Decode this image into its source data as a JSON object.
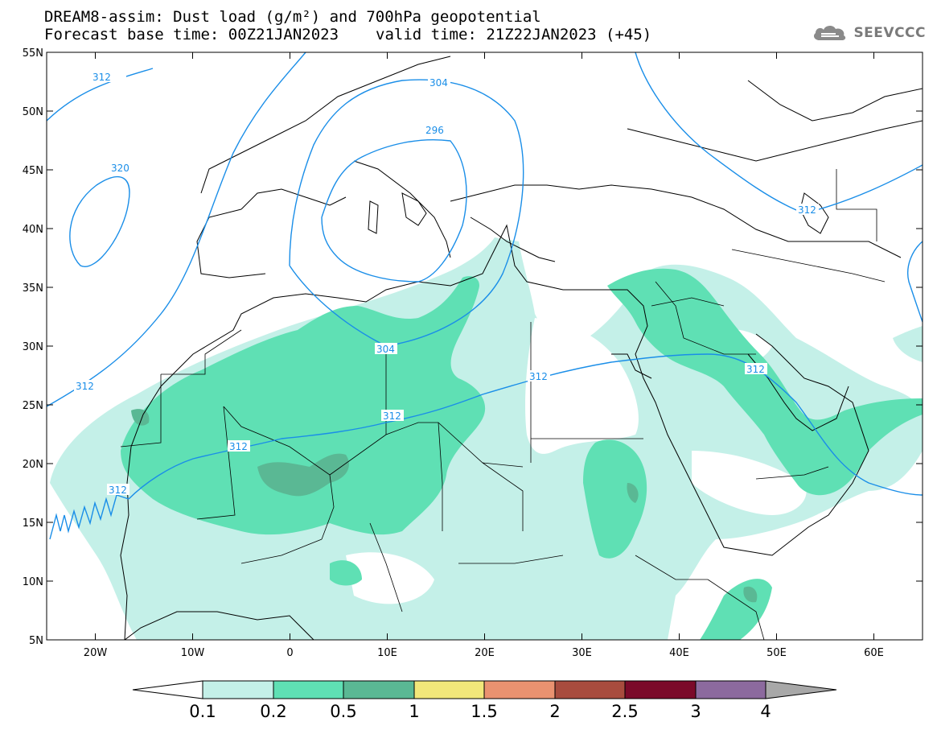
{
  "header": {
    "title": "DREAM8-assim: Dust load (g/m²) and 700hPa geopotential",
    "base_time": "Forecast base time: 00Z21JAN2023",
    "valid_time": "valid time: 21Z22JAN2023 (+45)"
  },
  "logo": {
    "name": "SEEVCCC",
    "icon": "cloud-logo-icon"
  },
  "map": {
    "lon_range": [
      -25,
      65
    ],
    "lat_range": [
      5,
      55
    ],
    "lat_labels": [
      "55N",
      "50N",
      "45N",
      "40N",
      "35N",
      "30N",
      "25N",
      "20N",
      "15N",
      "10N",
      "5N"
    ],
    "lon_labels": [
      "20W",
      "10W",
      "0",
      "10E",
      "20E",
      "30E",
      "40E",
      "50E",
      "60E"
    ],
    "contour_labels": [
      "312",
      "304",
      "296",
      "320",
      "312",
      "304",
      "312",
      "312",
      "312",
      "312",
      "312",
      "312"
    ],
    "colors": {
      "dust_0_1": "#c4f0e8",
      "dust_0_2": "#5fe0b4",
      "dust_0_5": "#5ab894",
      "contour": "#1a8ee8"
    }
  },
  "colorbar": {
    "labels": [
      "0.1",
      "0.2",
      "0.5",
      "1",
      "1.5",
      "2",
      "2.5",
      "3",
      "4"
    ],
    "colors": [
      "#ffffff",
      "#c4f0e8",
      "#5fe0b4",
      "#5ab894",
      "#f2e77a",
      "#ea9270",
      "#a84c3e",
      "#7b0a2a",
      "#8c6a9e",
      "#a8a8a8"
    ]
  }
}
